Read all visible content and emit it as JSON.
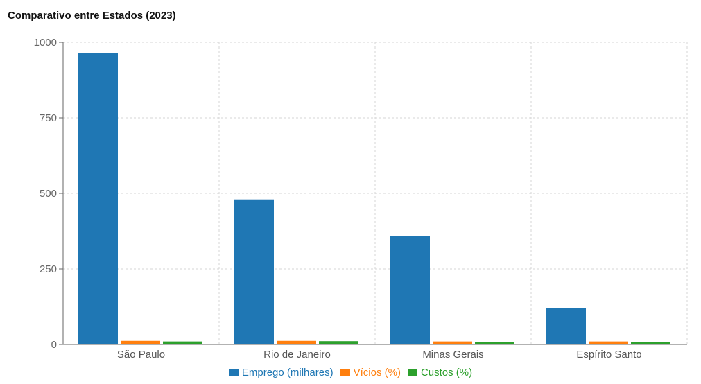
{
  "chart_data": {
    "type": "bar",
    "title": "Comparativo entre Estados (2023)",
    "xlabel": "",
    "ylabel": "",
    "categories": [
      "São Paulo",
      "Rio de Janeiro",
      "Minas Gerais",
      "Espírito Santo"
    ],
    "series": [
      {
        "name": "Emprego (milhares)",
        "color": "#1f77b4",
        "values": [
          965,
          480,
          360,
          120
        ]
      },
      {
        "name": "Vícios (%)",
        "color": "#ff7f0e",
        "values": [
          12,
          12,
          10,
          10
        ]
      },
      {
        "name": "Custos (%)",
        "color": "#2ca02c",
        "values": [
          10,
          11,
          9,
          9
        ]
      }
    ],
    "ylim": [
      0,
      1000
    ],
    "yticks": [
      0,
      250,
      500,
      750,
      1000
    ],
    "grid": true,
    "legend_position": "bottom"
  }
}
